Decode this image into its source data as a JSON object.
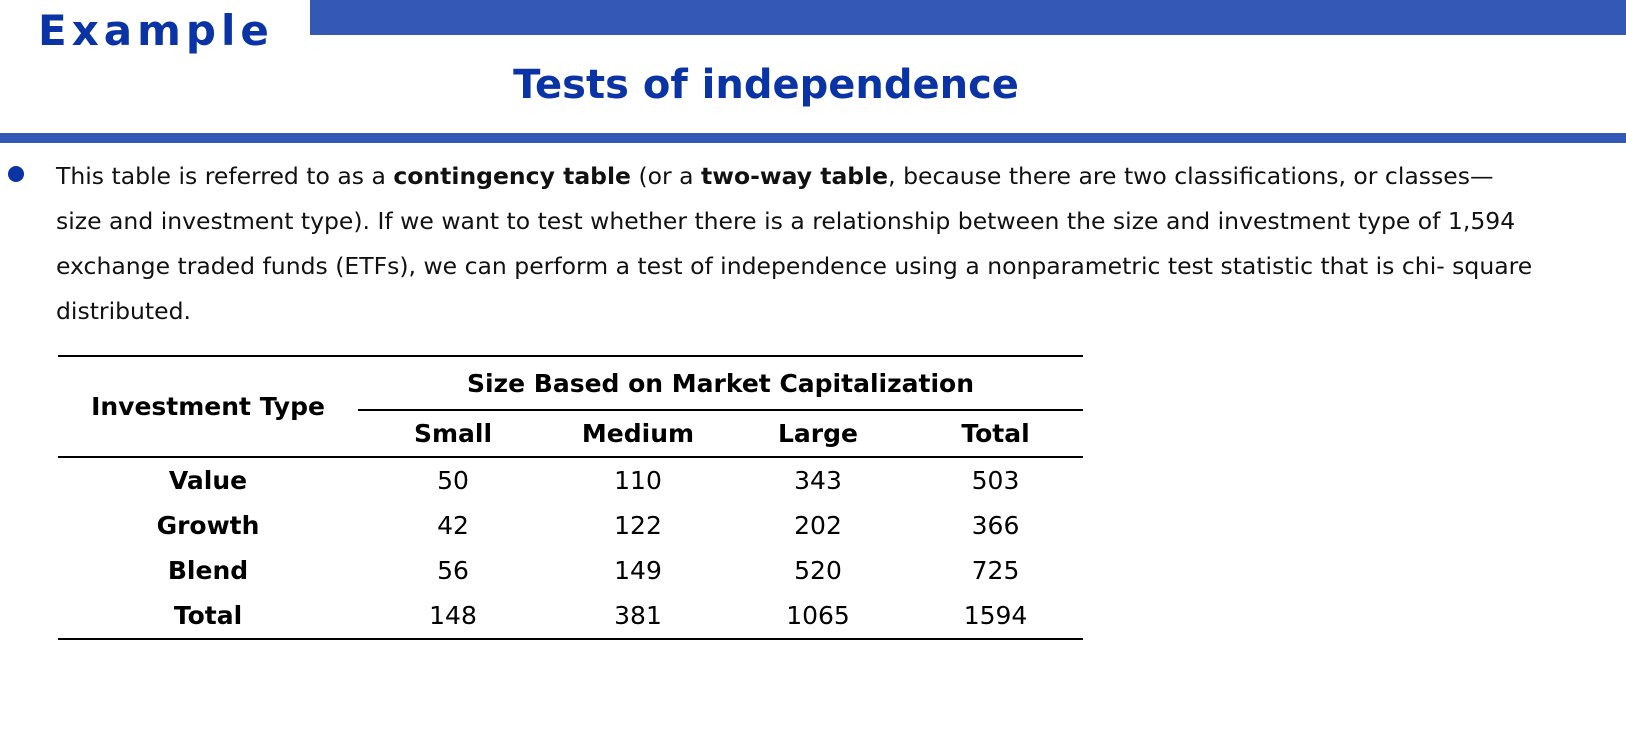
{
  "header": {
    "label": "Example",
    "title": "Tests of independence"
  },
  "paragraph": {
    "p1": "This table is referred to as a ",
    "b1": "contingency table",
    "p2": " (or a ",
    "b2": "two-way table",
    "p3": ", because there are two classifications, or classes—size and investment type). If we want to test whether there is a relationship between the size and investment type of 1,594 exchange traded funds (ETFs), we can perform a test of independence using a nonparametric test statistic that is chi- square distributed."
  },
  "table": {
    "row_header": "Investment Type",
    "group_header": "Size Based on Market Capitalization",
    "columns": [
      "Small",
      "Medium",
      "Large",
      "Total"
    ],
    "rows": [
      {
        "label": "Value",
        "values": [
          "50",
          "110",
          "343",
          "503"
        ]
      },
      {
        "label": "Growth",
        "values": [
          "42",
          "122",
          "202",
          "366"
        ]
      },
      {
        "label": "Blend",
        "values": [
          "56",
          "149",
          "520",
          "725"
        ]
      },
      {
        "label": "Total",
        "values": [
          "148",
          "381",
          "1065",
          "1594"
        ]
      }
    ]
  }
}
